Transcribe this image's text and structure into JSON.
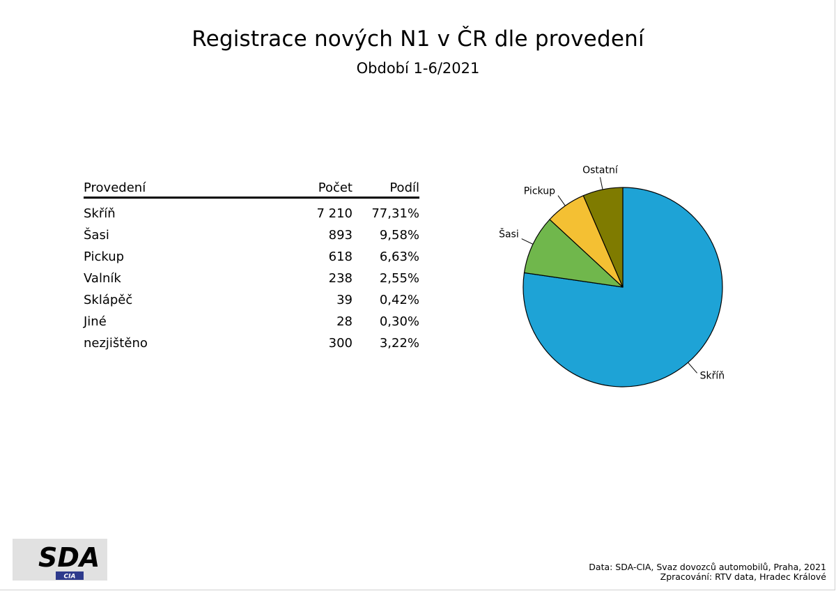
{
  "header": {
    "title": "Registrace nových N1 v ČR dle provedení",
    "subtitle": "Období 1-6/2021"
  },
  "table": {
    "columns": [
      "Provedení",
      "Počet",
      "Podíl"
    ],
    "rows": [
      {
        "name": "Skříň",
        "count": "7 210",
        "share": "77,31%"
      },
      {
        "name": "Šasi",
        "count": "893",
        "share": "9,58%"
      },
      {
        "name": "Pickup",
        "count": "618",
        "share": "6,63%"
      },
      {
        "name": "Valník",
        "count": "238",
        "share": "2,55%"
      },
      {
        "name": "Sklápěč",
        "count": "39",
        "share": "0,42%"
      },
      {
        "name": "Jiné",
        "count": "28",
        "share": "0,30%"
      },
      {
        "name": "nezjištěno",
        "count": "300",
        "share": "3,22%"
      }
    ]
  },
  "chart_data": {
    "type": "pie",
    "categories": [
      "Skříň",
      "Šasi",
      "Pickup",
      "Ostatní"
    ],
    "values": [
      77.31,
      9.58,
      6.63,
      6.49
    ],
    "colors": [
      "#1ea3d6",
      "#70b74c",
      "#f4c033",
      "#7f7b00"
    ],
    "start": "12 o'clock, clockwise"
  },
  "logo": {
    "main": "SDA",
    "sub": "CIA",
    "accent_color": "#2d3a8c",
    "bg_color": "#e1e1e1"
  },
  "footer": {
    "source": "Data: SDA-CIA, Svaz dovozců automobilů, Praha, 2021",
    "processing": "Zpracování: RTV data, Hradec Králové"
  }
}
